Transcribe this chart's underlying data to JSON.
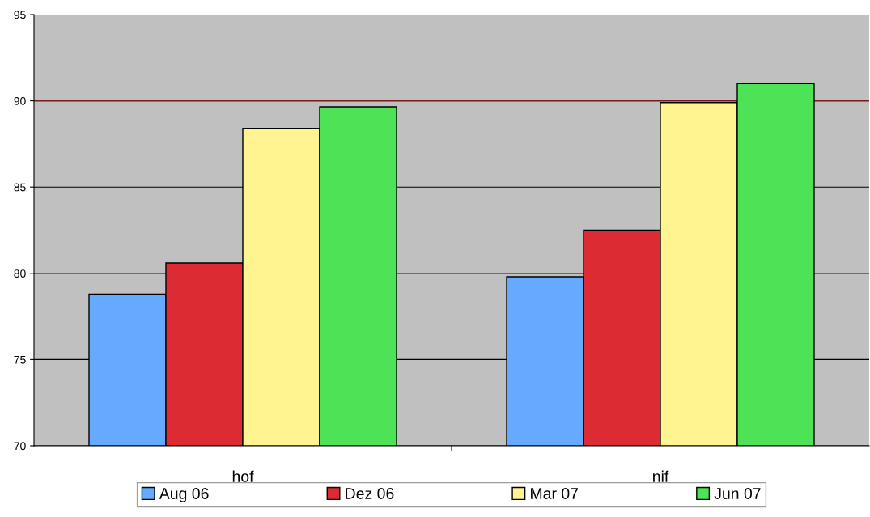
{
  "chart_data": {
    "type": "bar",
    "categories": [
      "hof",
      "nif"
    ],
    "series": [
      {
        "name": "Aug 06",
        "color": "#66aaff",
        "values": [
          78.8,
          79.8
        ]
      },
      {
        "name": "Dez 06",
        "color": "#dd2b33",
        "values": [
          80.6,
          82.5
        ]
      },
      {
        "name": "Mar 07",
        "color": "#fff48f",
        "values": [
          88.4,
          89.9
        ]
      },
      {
        "name": "Jun 07",
        "color": "#4ee256",
        "values": [
          89.65,
          91.0
        ]
      }
    ],
    "ylim": [
      70,
      95
    ],
    "yticks": [
      70,
      75,
      80,
      85,
      90,
      95
    ],
    "grid": "y",
    "legend": "bottom",
    "ref_lines": [
      {
        "axis": "y",
        "value": 80,
        "color": "#cc1111"
      },
      {
        "axis": "y",
        "value": 90,
        "color": "#7a1a1a"
      }
    ]
  }
}
